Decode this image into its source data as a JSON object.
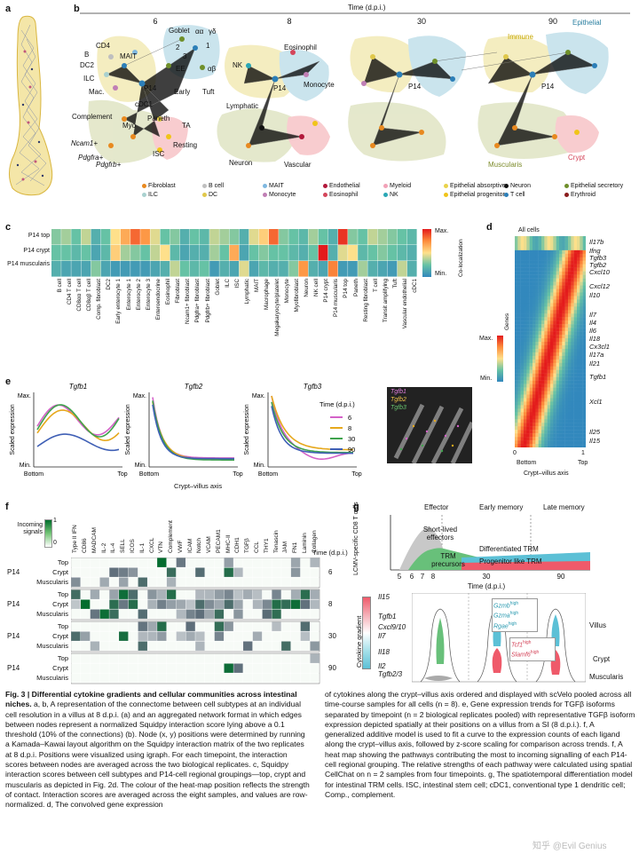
{
  "panel_labels": {
    "a": "a",
    "b": "b",
    "c": "c",
    "d": "d",
    "e": "e",
    "f": "f",
    "g": "g"
  },
  "panel_b": {
    "time_axis": "Time (d.p.i.)",
    "timepoints": [
      "6",
      "8",
      "30",
      "90"
    ],
    "node_labels_6": [
      "Goblet",
      "αα",
      "γδ",
      "CD4",
      "B",
      "MAIT",
      "DC2",
      "ILC",
      "Mac.",
      "P14",
      "EE",
      "αβ",
      "1",
      "2",
      "3",
      "Early",
      "Tuft",
      "cDC1",
      "Complement",
      "Myo",
      "Paneth",
      "TA",
      "Ncam1+",
      "Pdgfra+",
      "Pdgfrb+",
      "Resting",
      "ISC"
    ],
    "node_labels_8": [
      "NK",
      "Eosinophil",
      "P14",
      "Monocyte",
      "Lymphatic",
      "Neuron",
      "Vascular"
    ],
    "node_labels_30_90": [
      "Immune",
      "Epithelial",
      "P14",
      "Muscularis",
      "Crypt"
    ],
    "legend": [
      {
        "label": "Fibroblast",
        "color": "#e8891f"
      },
      {
        "label": "ILC",
        "color": "#a9d1cf"
      },
      {
        "label": "B cell",
        "color": "#bfbfbf"
      },
      {
        "label": "DC",
        "color": "#e0c84b"
      },
      {
        "label": "MAIT",
        "color": "#7fb8e0"
      },
      {
        "label": "Monocyte",
        "color": "#c07fb5"
      },
      {
        "label": "Endothelial",
        "color": "#b2183b"
      },
      {
        "label": "Eosinophil",
        "color": "#d4455a"
      },
      {
        "label": "Myeloid",
        "color": "#f2a2b8"
      },
      {
        "label": "NK",
        "color": "#2aa7b5"
      },
      {
        "label": "Epithelial absorptive",
        "color": "#e9d24a"
      },
      {
        "label": "Epithelial progenitor",
        "color": "#f0c419"
      },
      {
        "label": "Neuron",
        "color": "#111111"
      },
      {
        "label": "T cell",
        "color": "#2c7fb8"
      },
      {
        "label": "Epithelial secretory",
        "color": "#6f8f2a"
      },
      {
        "label": "Erythroid",
        "color": "#8a1c1c"
      }
    ]
  },
  "panel_c": {
    "rows": [
      "P14 top",
      "P14 crypt",
      "P14 muscularis"
    ],
    "columns": [
      "B cell",
      "CD4 T cell",
      "CD8αα T cell",
      "CD8αβ T cell",
      "Comp. fibroblast",
      "DC2",
      "Early enterocyte 1",
      "Enterocyte 1",
      "Enterocyte 2",
      "Enterocyte 3",
      "Enteroendocrine",
      "Eosinophil",
      "Fibroblast",
      "Ncam1+ fibroblast",
      "Pdgfra+ fibroblast",
      "Pdgfrb+ fibroblast",
      "Goblet",
      "ILC",
      "ISC",
      "Lymphatic",
      "MAIT",
      "Macrophage",
      "Megakaryocyte/platelet",
      "Monocyte",
      "Myofibroblast",
      "Neuron",
      "NK cell",
      "P14 crypt",
      "P14 muscularis",
      "P14 top",
      "Paneth",
      "Resting fibroblast",
      "T cell",
      "Transit amplifying",
      "Tuft",
      "Vascular endothelial",
      "cDC1"
    ],
    "colorbar_max": "Max.",
    "colorbar_min": "Min.",
    "colorbar_label": "Co-localization",
    "values": [
      [
        0.35,
        0.4,
        0.3,
        0.45,
        0.2,
        0.3,
        0.55,
        0.7,
        0.85,
        0.75,
        0.5,
        0.3,
        0.35,
        0.2,
        0.3,
        0.25,
        0.45,
        0.4,
        0.35,
        0.2,
        0.5,
        0.6,
        0.85,
        0.35,
        0.3,
        0.25,
        0.4,
        0.3,
        0.2,
        0.95,
        0.35,
        0.3,
        0.45,
        0.4,
        0.35,
        0.3,
        0.25
      ],
      [
        0.3,
        0.3,
        0.25,
        0.3,
        0.15,
        0.25,
        0.6,
        0.4,
        0.35,
        0.3,
        0.45,
        0.55,
        0.25,
        0.15,
        0.2,
        0.2,
        0.4,
        0.3,
        0.7,
        0.15,
        0.3,
        0.35,
        0.3,
        0.3,
        0.25,
        0.2,
        0.3,
        1.0,
        0.2,
        0.5,
        0.55,
        0.25,
        0.3,
        0.35,
        0.3,
        0.25,
        0.2
      ],
      [
        0.2,
        0.15,
        0.15,
        0.15,
        0.35,
        0.15,
        0.1,
        0.1,
        0.1,
        0.1,
        0.15,
        0.2,
        0.45,
        0.3,
        0.25,
        0.3,
        0.1,
        0.2,
        0.15,
        0.5,
        0.15,
        0.25,
        0.2,
        0.2,
        0.35,
        0.75,
        0.2,
        0.15,
        0.8,
        0.1,
        0.1,
        0.4,
        0.2,
        0.15,
        0.1,
        0.45,
        0.2
      ]
    ]
  },
  "panel_d": {
    "title": "All cells",
    "genes_label": "Genes",
    "max": "Max.",
    "min": "Min.",
    "genes": [
      "Il17b",
      "Ifng",
      "Tgfb3",
      "Tgfb2",
      "Cxcl10",
      "Cxcl12",
      "Il10",
      "Il7",
      "Il4",
      "Il6",
      "Il18",
      "Cx3cl1",
      "Il17a",
      "Il21",
      "Tgfb1",
      "Xcl1",
      "Il25",
      "Il15"
    ],
    "x_ticks": [
      "0",
      "1"
    ],
    "x_labels": [
      "Bottom",
      "Top"
    ],
    "x_axis": "Crypt–villus axis"
  },
  "panel_e": {
    "plots": [
      {
        "gene": "Tgfb1"
      },
      {
        "gene": "Tgfb2"
      },
      {
        "gene": "Tgfb3"
      }
    ],
    "y_max": "Max.",
    "y_min": "Min.",
    "y_label": "Scaled expression",
    "x_labels": [
      "Bottom",
      "Top"
    ],
    "x_axis": "Crypt–villus axis",
    "legend_title": "Time (d.p.i.)",
    "legend": [
      {
        "label": "6",
        "color": "#d462c8"
      },
      {
        "label": "8",
        "color": "#e6a81c"
      },
      {
        "label": "30",
        "color": "#3fa34d"
      },
      {
        "label": "90",
        "color": "#3f5fb5"
      }
    ],
    "image_labels": [
      "Tgfb1",
      "Tgfb2",
      "Tgfb3"
    ]
  },
  "panel_f": {
    "cbar_title": "Incoming signals",
    "cbar_max": "1",
    "cbar_min": "0",
    "pathways": [
      "Type II IFN",
      "CD86",
      "MADCAM",
      "IL-2",
      "IL-4",
      "SELL",
      "ICOS",
      "IL-1",
      "CXCL",
      "VTN",
      "Complement",
      "VWF",
      "ICAM",
      "Notch",
      "VCAM",
      "PECAM1",
      "MHC-II",
      "CDH1",
      "TGFβ",
      "CCL",
      "THY1",
      "Tenascin",
      "JAM",
      "FN1",
      "Laminin",
      "Collagen"
    ],
    "time_label": "Time (d.p.i.)",
    "groups": [
      {
        "cell": "P14",
        "time": "6",
        "rows": [
          "Top",
          "Crypt",
          "Muscularis"
        ]
      },
      {
        "cell": "P14",
        "time": "8",
        "rows": [
          "Top",
          "Crypt",
          "Muscularis"
        ]
      },
      {
        "cell": "P14",
        "time": "30",
        "rows": [
          "Top",
          "Crypt",
          "Muscularis"
        ]
      },
      {
        "cell": "P14",
        "time": "90",
        "rows": [
          "Top",
          "Crypt",
          "Muscularis"
        ]
      }
    ]
  },
  "panel_g": {
    "phases": [
      "Effector",
      "Early memory",
      "Late memory"
    ],
    "y_label": "LCMV-specific CD8 T cells",
    "short_lived": "Short-lived effectors",
    "trm_precursors": "TRM precursors",
    "differentiated": "Differentiated TRM",
    "progenitor": "Progenitor like TRM",
    "x_ticks": [
      "5",
      "6",
      "7",
      "8",
      "30",
      "90"
    ],
    "x_axis": "Time (d.p.i.)",
    "gradient_label": "Cytokine gradient",
    "cytokines": [
      "Il15",
      "Tgfb1",
      "Cxcl9/10",
      "Il7",
      "Il18",
      "Il2",
      "Tgfb2/3"
    ],
    "markers_high": [
      "Gzmb",
      "Gzma",
      "Rgae"
    ],
    "markers_low": [
      "Tcf1",
      "Slamf6"
    ],
    "high_tag": "high",
    "regions": [
      "Villus",
      "Crypt",
      "Muscularis"
    ]
  },
  "caption": {
    "title": "Fig. 3 | Differential cytokine gradients and cellular communities across intestinal niches.",
    "left": " a, b, A representation of the connectome between cell subtypes at an individual cell resolution in a villus at 8 d.p.i. (a) and an aggregated network format in which edges between nodes represent a normalized Squidpy interaction score lying above a 0.1 threshold (10% of the connections) (b). Node (x, y) positions were determined by running a Kamada–Kawai layout algorithm on the Squidpy interaction matrix of the two replicates at 8 d.p.i. Positions were visualized using igraph. For each timepoint, the interaction scores between nodes are averaged across the two biological replicates. c, Squidpy interaction scores between cell subtypes and P14-cell regional groupings—top, crypt and muscularis as depicted in Fig. 2d. The colour of the heat-map position reflects the strength of contact. Interaction scores are averaged across the eight samples, and values are row-normalized. d, The convolved gene expression",
    "right": "of cytokines along the crypt–villus axis ordered and displayed with scVelo pooled across all time-course samples for all cells (n = 8). e, Gene expression trends for TGFβ isoforms separated by timepoint (n = 2 biological replicates pooled) with representative TGFβ isoform expression depicted spatially at their positions on a villus from a SI (8 d.p.i.). f, A generalized additive model is used to fit a curve to the expression counts of each ligand along the crypt–villus axis, followed by z-score scaling for comparison across trends. f, A heat map showing the pathways contributing the most to incoming signalling of each P14-cell regional grouping. The relative strengths of each pathway were calculated using spatial CellChat on n = 2 samples from four timepoints. g, The spatiotemporal differentiation model for intestinal TRM cells. ISC, intestinal stem cell; cDC1, conventional type 1 dendritic cell; Comp., complement."
  },
  "watermark": "知乎 @Evil Genius"
}
